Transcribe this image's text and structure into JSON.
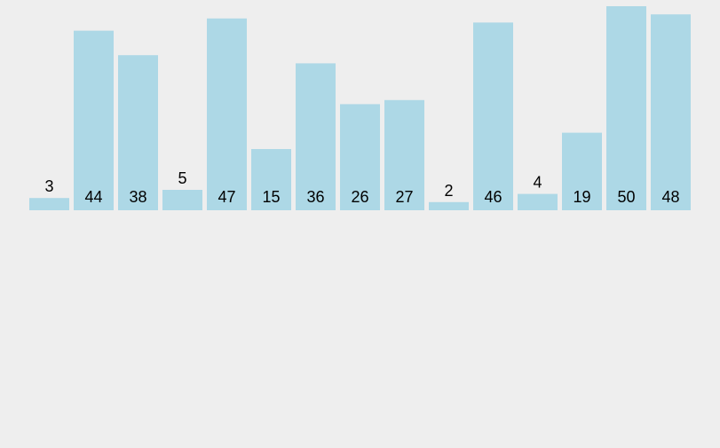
{
  "chart_data": {
    "type": "bar",
    "values": [
      3,
      44,
      38,
      5,
      47,
      15,
      36,
      26,
      27,
      2,
      46,
      4,
      19,
      50,
      48
    ],
    "ylim": [
      0,
      50
    ],
    "grid": false,
    "axes_visible": false,
    "data_labels": true,
    "colors": {
      "bar": "#add8e6",
      "background": "#eeeeee",
      "label": "#000000"
    }
  }
}
